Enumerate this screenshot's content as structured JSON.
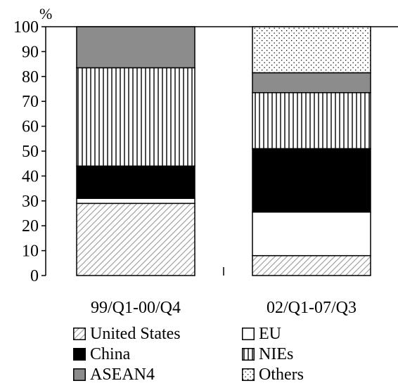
{
  "chart_data": {
    "type": "bar",
    "stacked": true,
    "unit_label": "%",
    "title": "",
    "xlabel": "",
    "ylabel": "",
    "ylim": [
      0,
      100
    ],
    "y_ticks": [
      0,
      10,
      20,
      30,
      40,
      50,
      60,
      70,
      80,
      90,
      100
    ],
    "grid": false,
    "legend_position": "bottom",
    "categories": [
      "99/Q1-00/Q4",
      "02/Q1-07/Q3"
    ],
    "series": [
      {
        "name": "United States",
        "values": [
          29,
          8
        ],
        "pattern": "diagonal-hatch",
        "color": "#b0b0b0"
      },
      {
        "name": "EU",
        "values": [
          2,
          17.5
        ],
        "pattern": "solid",
        "color": "#ffffff"
      },
      {
        "name": "China",
        "values": [
          13,
          25.5
        ],
        "pattern": "solid",
        "color": "#000000"
      },
      {
        "name": "NIEs",
        "values": [
          39.5,
          22.5
        ],
        "pattern": "vertical-lines",
        "color": "#000000"
      },
      {
        "name": "ASEAN4",
        "values": [
          16.5,
          8
        ],
        "pattern": "solid",
        "color": "#8c8c8c"
      },
      {
        "name": "Others",
        "values": [
          0,
          18.5
        ],
        "pattern": "dots",
        "color": "#000000"
      }
    ]
  }
}
